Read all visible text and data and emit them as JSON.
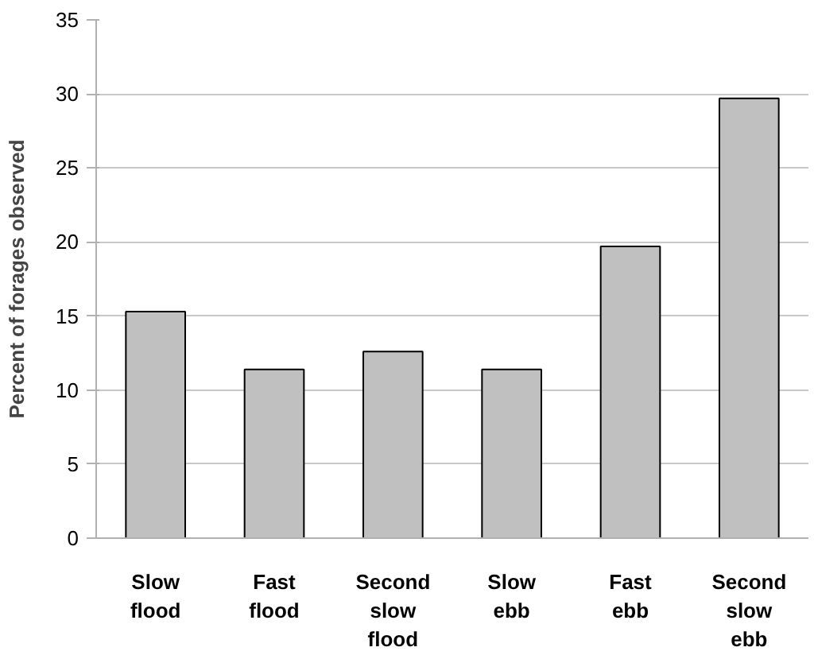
{
  "chart_data": {
    "type": "bar",
    "ylabel": "Percent of forages observed",
    "categories": [
      "Slow\nflood",
      "Fast\nflood",
      "Second\nslow\nflood",
      "Slow\nebb",
      "Fast\nebb",
      "Second\nslow\nebb"
    ],
    "values": [
      15.3,
      11.4,
      12.6,
      11.4,
      19.7,
      29.7
    ],
    "color": "#c0c0c0",
    "ylim": [
      0,
      35
    ],
    "yticks": [
      0,
      5,
      10,
      15,
      20,
      25,
      30,
      35
    ],
    "grid": "y"
  }
}
